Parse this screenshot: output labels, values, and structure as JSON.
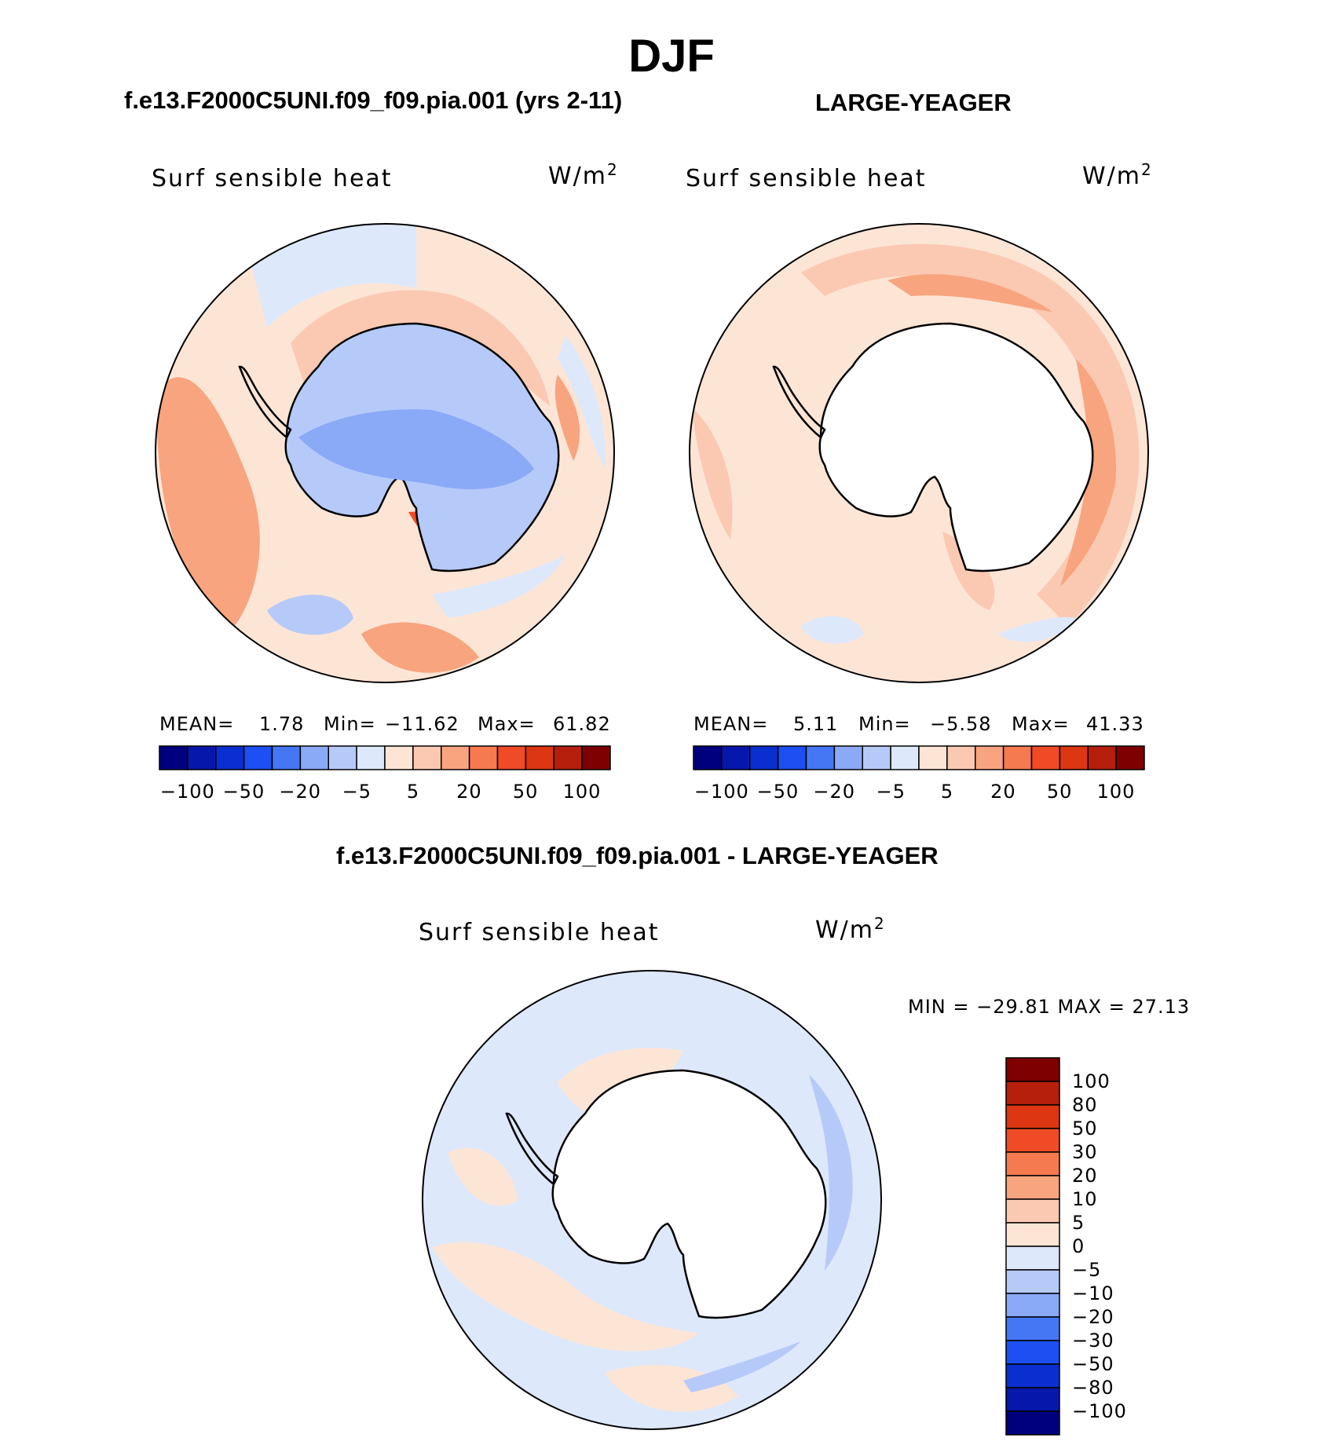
{
  "title": "DJF",
  "colors": {
    "abs": [
      "#00007f",
      "#0618ab",
      "#0a2fd0",
      "#1d4ff2",
      "#4577f5",
      "#8aa9f7",
      "#b6caf9",
      "#dde8fb",
      "#fde5d6",
      "#fbc9b2",
      "#f8a47e",
      "#f57a4f",
      "#ef4b26",
      "#dc3612",
      "#b51f0c",
      "#7f0000"
    ],
    "diff": [
      "#00007f",
      "#0618ab",
      "#0a2fd0",
      "#1d4ff2",
      "#4577f5",
      "#8aa9f7",
      "#b6caf9",
      "#dde8fb",
      "#fde5d6",
      "#fbc9b2",
      "#f8a47e",
      "#f57a4f",
      "#ef4b26",
      "#dc3612",
      "#b51f0c",
      "#7f0000"
    ]
  },
  "panels": {
    "model": {
      "case": "f.e13.F2000C5UNI.f09_f09.pia.001 (yrs 2-11)",
      "variable": "Surf  sensible  heat",
      "unit_base": "W/m",
      "unit_exp": "2",
      "mean_label": "MEAN=",
      "mean_value": "1.78",
      "min_label": "Min=",
      "min_value": "−11.62",
      "max_label": "Max=",
      "max_value": "61.82",
      "ticks": [
        "−100",
        "−50",
        "−20",
        "−5",
        "5",
        "20",
        "50",
        "100"
      ],
      "land_fill": "#b6caf9"
    },
    "obs": {
      "case": "LARGE-YEAGER",
      "variable": "Surf  sensible  heat",
      "unit_base": "W/m",
      "unit_exp": "2",
      "mean_label": "MEAN=",
      "mean_value": "5.11",
      "min_label": "Min=",
      "min_value": "−5.58",
      "max_label": "Max=",
      "max_value": "41.33",
      "ticks": [
        "−100",
        "−50",
        "−20",
        "−5",
        "5",
        "20",
        "50",
        "100"
      ],
      "land_fill": "#ffffff"
    },
    "diff": {
      "case": "f.e13.F2000C5UNI.f09_f09.pia.001 - LARGE-YEAGER",
      "variable": "Surf  sensible  heat",
      "unit_base": "W/m",
      "unit_exp": "2",
      "minmax_label": "MIN = −29.81  MAX =   27.13",
      "ticks": [
        "100",
        "80",
        "50",
        "30",
        "20",
        "10",
        "5",
        "0",
        "−5",
        "−10",
        "−20",
        "−30",
        "−50",
        "−80",
        "−100"
      ],
      "land_fill": "#ffffff"
    }
  }
}
